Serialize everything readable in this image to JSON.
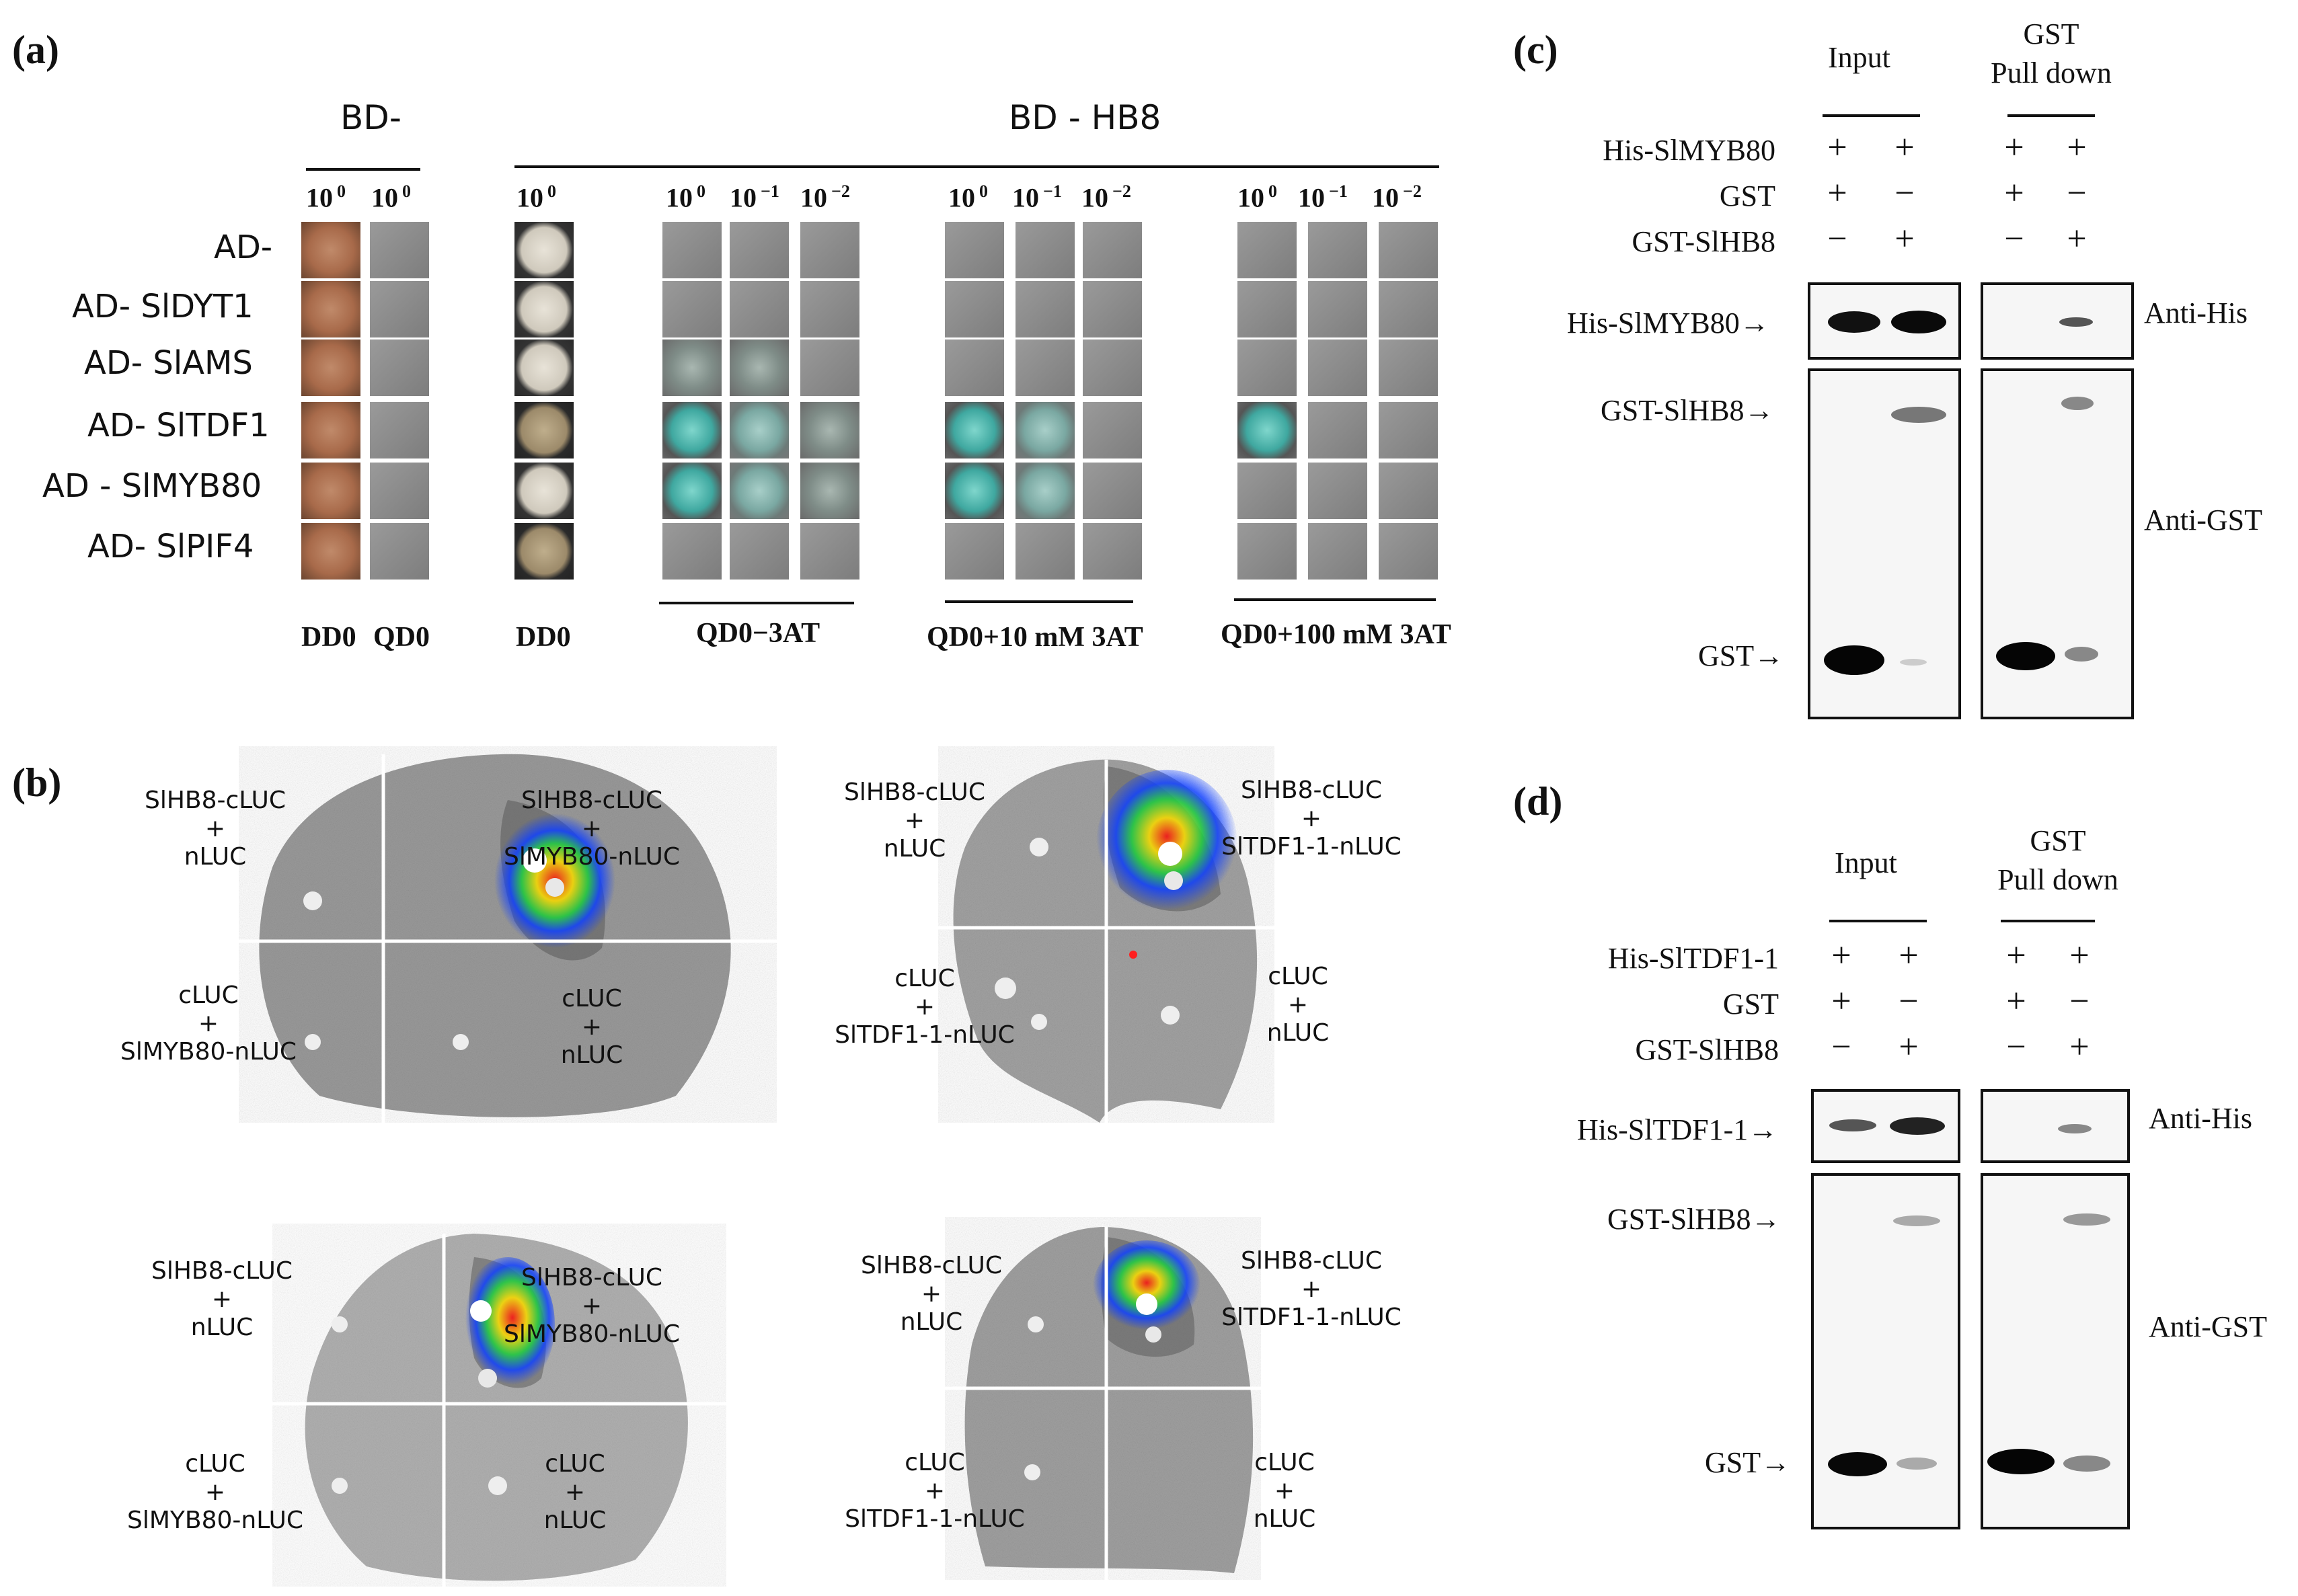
{
  "panels": {
    "a": "(a)",
    "b": "(b)",
    "c": "(c)",
    "d": "(d)"
  },
  "panel_a": {
    "bd_empty": "BD",
    "bd_hb8": "BD - HB8",
    "dilution_1": "10",
    "dilution_exp_0": "0",
    "dilution_exp_m1": "−1",
    "dilution_exp_m2": "−2",
    "rows": [
      "AD-",
      "AD- SlDYT1",
      "AD- SlAMS",
      "AD- SlTDF1",
      "AD - SlMYB80",
      "AD- SlPIF4"
    ],
    "media": {
      "dd0_left": "DD0",
      "qd0_left": "QD0",
      "dd0": "DD0",
      "qd0_3at": "QD0−3AT",
      "qd0_10": "QD0+10 mM 3AT",
      "qd0_100": "QD0+100 mM 3AT"
    }
  },
  "panel_b": {
    "leaf1": {
      "tl": [
        "SlHB8-cLUC",
        "+",
        "nLUC"
      ],
      "tr": [
        "SlHB8-cLUC",
        "+",
        "SlMYB80-nLUC"
      ],
      "bl": [
        "cLUC",
        "+",
        "SlMYB80-nLUC"
      ],
      "br": [
        "cLUC",
        "+",
        "nLUC"
      ]
    },
    "leaf2": {
      "tl": [
        "SlHB8-cLUC",
        "+",
        "nLUC"
      ],
      "tr": [
        "SlHB8-cLUC",
        "+",
        "SlTDF1-1-nLUC"
      ],
      "bl": [
        "cLUC",
        "+",
        "SlTDF1-1-nLUC"
      ],
      "br": [
        "cLUC",
        "+",
        "nLUC"
      ]
    },
    "leaf3": {
      "tl": [
        "SlHB8-cLUC",
        "+",
        "nLUC"
      ],
      "tr": [
        "SlHB8-cLUC",
        "+",
        "SlMYB80-nLUC"
      ],
      "bl": [
        "cLUC",
        "+",
        "SlMYB80-nLUC"
      ],
      "br": [
        "cLUC",
        "+",
        "nLUC"
      ]
    },
    "leaf4": {
      "tl": [
        "SlHB8-cLUC",
        "+",
        "nLUC"
      ],
      "tr": [
        "SlHB8-cLUC",
        "+",
        "SlTDF1-1-nLUC"
      ],
      "bl": [
        "cLUC",
        "+",
        "SlTDF1-1-nLUC"
      ],
      "br": [
        "cLUC",
        "+",
        "nLUC"
      ]
    }
  },
  "panel_c": {
    "input": "Input",
    "gst_pd_1": "GST",
    "gst_pd_2": "Pull down",
    "row_labels": [
      "His-SlMYB80",
      "GST",
      "GST-SlHB8"
    ],
    "signs": [
      [
        "+",
        "+",
        "+",
        "+"
      ],
      [
        "+",
        "−",
        "+",
        "−"
      ],
      [
        "−",
        "+",
        "−",
        "+"
      ]
    ],
    "band_labels": [
      "His-SlMYB80",
      "GST-SlHB8",
      "GST"
    ],
    "antibody_his": "Anti-His",
    "antibody_gst": "Anti-GST"
  },
  "panel_d": {
    "input": "Input",
    "gst_pd_1": "GST",
    "gst_pd_2": "Pull down",
    "row_labels": [
      "His-SlTDF1-1",
      "GST",
      "GST-SlHB8"
    ],
    "signs": [
      [
        "+",
        "+",
        "+",
        "+"
      ],
      [
        "+",
        "−",
        "+",
        "−"
      ],
      [
        "−",
        "+",
        "−",
        "+"
      ]
    ],
    "band_labels": [
      "His-SlTDF1-1",
      "GST-SlHB8",
      "GST"
    ],
    "antibody_his": "Anti-His",
    "antibody_gst": "Anti-GST"
  }
}
